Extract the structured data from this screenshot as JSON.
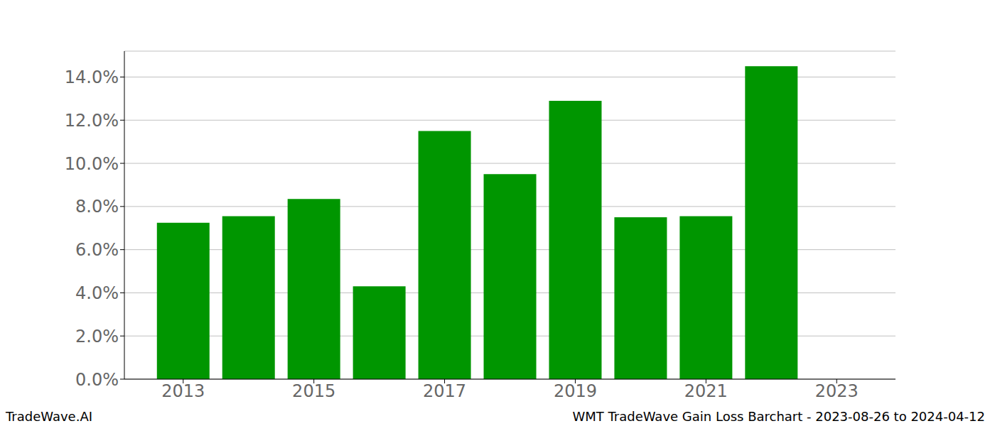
{
  "chart_data": {
    "type": "bar",
    "title": "WMT TradeWave Gain Loss Barchart - 2023-08-26 to 2024-04-12",
    "source": "TradeWave.AI",
    "x": [
      2013,
      2014,
      2015,
      2016,
      2017,
      2018,
      2019,
      2020,
      2021,
      2022
    ],
    "values": [
      7.25,
      7.55,
      8.35,
      4.3,
      11.5,
      9.5,
      12.9,
      7.5,
      7.55,
      14.5
    ],
    "color": "#009600",
    "xlim": [
      2012.1,
      2023.9
    ],
    "xticks": [
      2013,
      2015,
      2017,
      2019,
      2021,
      2023
    ],
    "ylim": [
      0,
      15.2
    ],
    "yticks": [
      {
        "value": 0,
        "label": "0.0%"
      },
      {
        "value": 2,
        "label": "2.0%"
      },
      {
        "value": 4,
        "label": "4.0%"
      },
      {
        "value": 6,
        "label": "6.0%"
      },
      {
        "value": 8,
        "label": "8.0%"
      },
      {
        "value": 10,
        "label": "10.0%"
      },
      {
        "value": 12,
        "label": "12.0%"
      },
      {
        "value": 14,
        "label": "14.0%"
      }
    ],
    "grid": true
  }
}
